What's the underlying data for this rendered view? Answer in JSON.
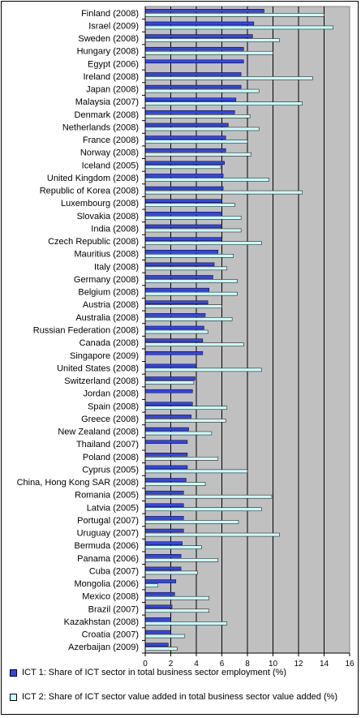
{
  "chart_data": {
    "type": "bar",
    "orientation": "horizontal",
    "categories": [
      "Finland (2008)",
      "Israel (2009)",
      "Sweden (2008)",
      "Hungary (2008)",
      "Egypt (2006)",
      "Ireland (2008)",
      "Japan (2008)",
      "Malaysia (2007)",
      "Denmark (2008)",
      "Netherlands (2008)",
      "France (2008)",
      "Norway (2008)",
      "Iceland (2005)",
      "United Kingdom (2008)",
      "Republic of Korea (2008)",
      "Luxembourg (2008)",
      "Slovakia (2008)",
      "India (2008)",
      "Czech Republic (2008)",
      "Mauritius (2008)",
      "Italy (2008)",
      "Germany (2008)",
      "Belgium (2008)",
      "Austria (2008)",
      "Australia (2008)",
      "Russian Federation (2008)",
      "Canada (2008)",
      "Singapore (2009)",
      "United States (2008)",
      "Switzerland (2008)",
      "Jordan (2008)",
      "Spain (2008)",
      "Greece (2008)",
      "New Zealand (2008)",
      "Thailand (2007)",
      "Poland (2008)",
      "Cyprus (2005)",
      "China, Hong Kong SAR (2008)",
      "Romania (2005)",
      "Latvia (2005)",
      "Portugal (2007)",
      "Uruguay (2007)",
      "Bermuda (2006)",
      "Panama (2006)",
      "Cuba (2007)",
      "Mongolia (2006)",
      "Mexico (2008)",
      "Brazil (2007)",
      "Kazakhstan (2008)",
      "Croatia (2007)",
      "Azerbaijan (2009)"
    ],
    "series": [
      {
        "name": "ICT 1: Share of ICT sector in total business sector employment (%)",
        "color": "#3344ee",
        "values": [
          9.3,
          8.5,
          8.4,
          7.7,
          7.7,
          7.5,
          7.5,
          7.1,
          7.0,
          6.5,
          6.3,
          6.3,
          6.2,
          6.1,
          6.1,
          6.0,
          6.0,
          6.0,
          6.0,
          5.7,
          5.4,
          5.3,
          5.0,
          4.9,
          4.7,
          4.6,
          4.5,
          4.5,
          4.0,
          3.9,
          3.7,
          3.7,
          3.6,
          3.4,
          3.3,
          3.3,
          3.3,
          3.2,
          3.0,
          3.0,
          3.0,
          3.0,
          2.9,
          2.8,
          2.8,
          2.4,
          2.3,
          2.1,
          2.0,
          2.0,
          1.8
        ]
      },
      {
        "name": "ICT 2: Share of ICT sector value added in total business sector value added (%)",
        "color": "#ccffff",
        "values": [
          14.0,
          14.7,
          10.5,
          10.0,
          null,
          13.1,
          8.9,
          12.3,
          8.2,
          8.9,
          8.0,
          8.3,
          5.9,
          9.7,
          12.3,
          7.0,
          7.5,
          7.5,
          9.1,
          6.9,
          6.4,
          7.2,
          7.2,
          6.0,
          6.8,
          4.9,
          7.7,
          null,
          9.1,
          3.8,
          null,
          6.4,
          6.3,
          5.2,
          null,
          5.7,
          8.0,
          4.7,
          9.9,
          9.1,
          7.3,
          10.5,
          4.4,
          5.7,
          4.1,
          1.0,
          5.0,
          5.0,
          6.4,
          3.1,
          2.5
        ]
      }
    ],
    "xlim": [
      0,
      16
    ],
    "xticks": [
      "0",
      "2",
      "4",
      "6",
      "8",
      "10",
      "12",
      "14",
      "16"
    ],
    "grid": true,
    "legend_position": "bottom"
  }
}
